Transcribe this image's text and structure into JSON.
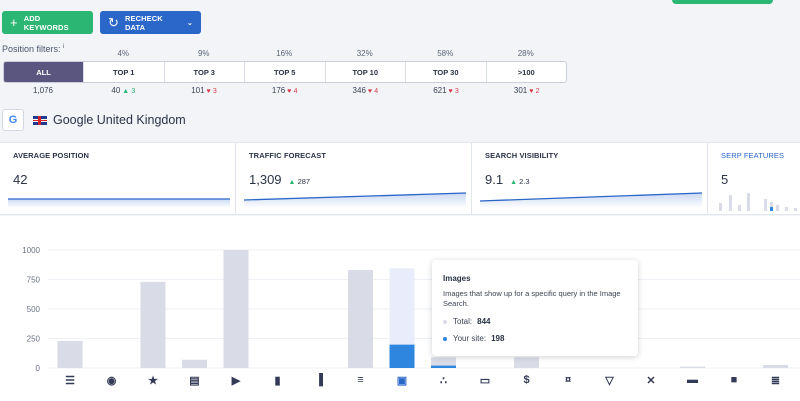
{
  "toolbar": {
    "add_keywords": "ADD KEYWORDS",
    "recheck_data": "RECHECK DATA"
  },
  "position_filters": {
    "label": "Position filters:",
    "info": "i",
    "percents": [
      "4%",
      "9%",
      "16%",
      "32%",
      "58%",
      "28%"
    ],
    "tabs": [
      "ALL",
      "TOP 1",
      "TOP 3",
      "TOP 5",
      "TOP 10",
      "TOP 30",
      ">100"
    ],
    "selected_tab": "ALL",
    "counts": [
      {
        "value": "1,076",
        "delta": "",
        "dir": ""
      },
      {
        "value": "40",
        "delta": "3",
        "dir": "up"
      },
      {
        "value": "101",
        "delta": "3",
        "dir": "down"
      },
      {
        "value": "176",
        "delta": "4",
        "dir": "down"
      },
      {
        "value": "346",
        "delta": "4",
        "dir": "down"
      },
      {
        "value": "621",
        "delta": "3",
        "dir": "down"
      },
      {
        "value": "301",
        "delta": "2",
        "dir": "down"
      }
    ]
  },
  "region": {
    "engine_icon": "google-icon",
    "engine_letter": "G",
    "flag_icon": "uk-flag-icon",
    "name": "Google United Kingdom"
  },
  "kpis": [
    {
      "title": "AVERAGE POSITION",
      "value": "42",
      "delta": "",
      "dir": ""
    },
    {
      "title": "TRAFFIC FORECAST",
      "value": "1,309",
      "delta": "287",
      "dir": "up"
    },
    {
      "title": "SEARCH VISIBILITY",
      "value": "9.1",
      "delta": "2.3",
      "dir": "up"
    },
    {
      "title": "SERP FEATURES",
      "value": "5",
      "delta": "",
      "dir": ""
    }
  ],
  "colors": {
    "accent_green": "#2bb673",
    "accent_blue": "#2b66c9",
    "tab_selected": "#5b5680",
    "bar_total": "#d9dbe6",
    "bar_site": "#2e86de",
    "bar_highlight_bg": "#e9edfb"
  },
  "chart_data": {
    "type": "bar",
    "title": "",
    "xlabel": "",
    "ylabel": "",
    "ylim": [
      0,
      1000
    ],
    "yticks": [
      0,
      250,
      500,
      750,
      1000
    ],
    "categories": [
      "featured-snippet",
      "local-pack",
      "reviews",
      "sitelinks",
      "video",
      "carousel",
      "top-stories",
      "people-also-ask",
      "images",
      "knowledge-graph",
      "ads-top",
      "shopping",
      "paid-ads",
      "shopping-ads",
      "twitter",
      "hotels",
      "jobs",
      "related-searches"
    ],
    "icon_names": [
      "list-icon",
      "pin-icon",
      "star-icon",
      "table-icon",
      "video-icon",
      "carousel-icon",
      "news-icon",
      "faq-icon",
      "image-icon",
      "graph-icon",
      "rectangle-icon",
      "dollar-badge-icon",
      "dollar-circle-icon",
      "basket-icon",
      "x-icon",
      "bed-icon",
      "briefcase-icon",
      "menu-icon"
    ],
    "series": [
      {
        "name": "Total",
        "values": [
          230,
          0,
          730,
          70,
          1010,
          0,
          0,
          830,
          844,
          90,
          0,
          90,
          0,
          0,
          0,
          12,
          0,
          25
        ]
      },
      {
        "name": "Your site",
        "values": [
          0,
          0,
          0,
          0,
          0,
          0,
          0,
          0,
          198,
          20,
          0,
          0,
          0,
          0,
          0,
          0,
          0,
          0
        ]
      }
    ],
    "highlighted_category": "images"
  },
  "tooltip": {
    "title": "Images",
    "description": "Images that show up for a specific query in the Image Search.",
    "total_label": "Total:",
    "total_value": "844",
    "site_label": "Your site:",
    "site_value": "198"
  }
}
